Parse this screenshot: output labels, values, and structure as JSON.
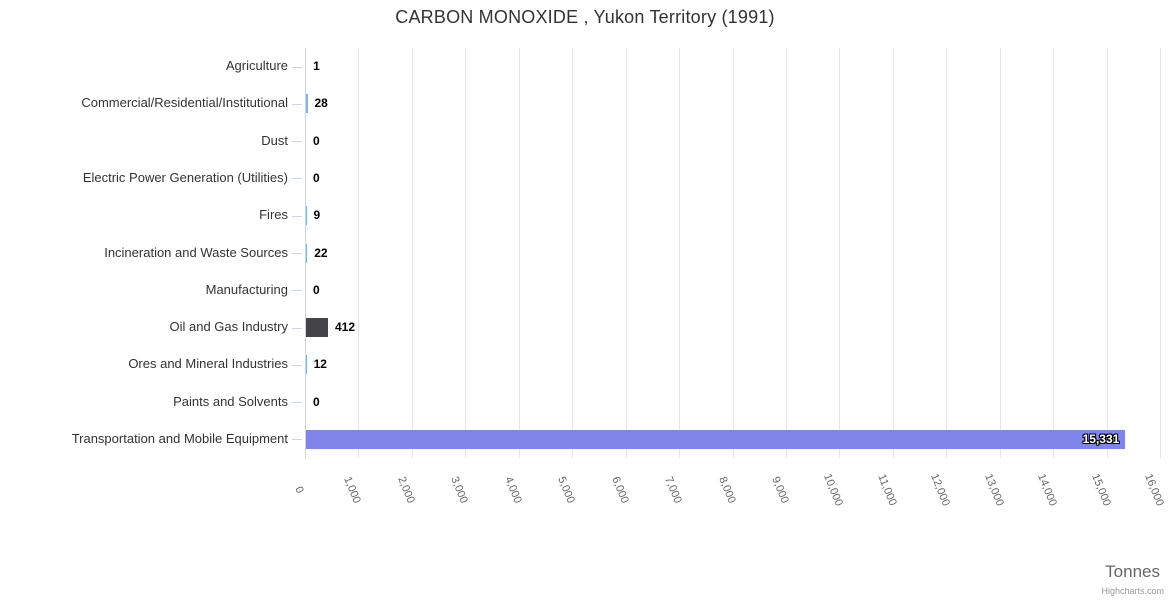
{
  "chart_data": {
    "type": "bar",
    "orientation": "horizontal",
    "title": "CARBON MONOXIDE , Yukon Territory (1991)",
    "categories": [
      "Agriculture",
      "Commercial/Residential/Institutional",
      "Dust",
      "Electric Power Generation (Utilities)",
      "Fires",
      "Incineration and Waste Sources",
      "Manufacturing",
      "Oil and Gas Industry",
      "Ores and Mineral Industries",
      "Paints and Solvents",
      "Transportation and Mobile Equipment"
    ],
    "values": [
      1,
      28,
      0,
      0,
      9,
      22,
      0,
      412,
      12,
      0,
      15331
    ],
    "value_labels": [
      "1",
      "28",
      "0",
      "0",
      "9",
      "22",
      "0",
      "412",
      "12",
      "0",
      "15,331"
    ],
    "bar_colors": [
      "#7cb5ec",
      "#7cb5ec",
      "#7cb5ec",
      "#7cb5ec",
      "#7cb5ec",
      "#7cb5ec",
      "#7cb5ec",
      "#434348",
      "#7cb5ec",
      "#7cb5ec",
      "#8085e9"
    ],
    "xlabel": "Tonnes",
    "ylabel": "",
    "xlim": [
      0,
      16000
    ],
    "tick_interval": 1000,
    "x_tick_labels": [
      "0",
      "1,000",
      "2,000",
      "3,000",
      "4,000",
      "5,000",
      "6,000",
      "7,000",
      "8,000",
      "9,000",
      "10,000",
      "11,000",
      "12,000",
      "13,000",
      "14,000",
      "15,000",
      "16,000"
    ],
    "grid": true,
    "legend": "none",
    "colors": {
      "grid": "#e6e6e6",
      "axis_line": "#ccd6eb",
      "title_text": "#333333",
      "category_text": "#333333",
      "tick_text": "#666666",
      "value_text": "#000000",
      "value_text_inside": "#ffffff",
      "axis_title_text": "#666666",
      "credits_text": "#999999",
      "background": "#ffffff"
    }
  },
  "credits": {
    "label": "Highcharts.com"
  }
}
